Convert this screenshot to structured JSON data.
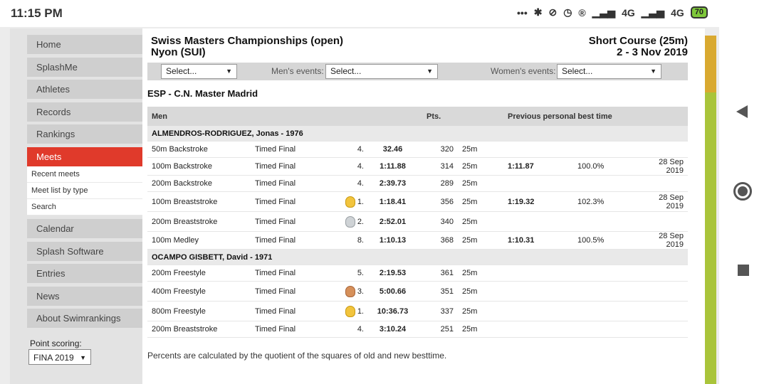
{
  "status_bar": {
    "time": "11:15 PM",
    "icons": [
      "more-dots-icon",
      "bluetooth-icon",
      "mute-icon",
      "alarm-icon",
      "registered-icon",
      "signal-icon",
      "signal-icon"
    ],
    "network_1": "4G",
    "network_2": "4G",
    "battery": "70"
  },
  "sidebar": {
    "items": [
      {
        "label": "Home"
      },
      {
        "label": "SplashMe"
      },
      {
        "label": "Athletes"
      },
      {
        "label": "Records"
      },
      {
        "label": "Rankings"
      },
      {
        "label": "Meets"
      },
      {
        "label": "Calendar"
      },
      {
        "label": "Splash Software"
      },
      {
        "label": "Entries"
      },
      {
        "label": "News"
      },
      {
        "label": "About Swimrankings"
      }
    ],
    "active": "Meets",
    "subitems": [
      "Recent meets",
      "Meet list by type",
      "Search"
    ],
    "point_scoring_label": "Point scoring:",
    "point_scoring_value": "FINA 2019"
  },
  "meet": {
    "name": "Swiss Masters Championships (open)",
    "location": "Nyon (SUI)",
    "course": "Short Course (25m)",
    "dates": "2 - 3 Nov 2019"
  },
  "filters": {
    "first_select": "Select...",
    "mens_label": "Men's events:",
    "mens_select": "Select...",
    "womens_label": "Women's events:",
    "womens_select": "Select..."
  },
  "club": "ESP - C.N. Master Madrid",
  "table": {
    "headers": {
      "gender": "Men",
      "pts": "Pts.",
      "previous": "Previous personal best time"
    },
    "athletes": [
      {
        "name": "ALMENDROS-RODRIGUEZ, Jonas - 1976",
        "results": [
          {
            "event": "50m Backstroke",
            "round": "Timed Final",
            "place": "4.",
            "medal": "",
            "time": "32.46",
            "pts": "320",
            "course": "25m",
            "prev_time": "",
            "pct": "",
            "date": ""
          },
          {
            "event": "100m Backstroke",
            "round": "Timed Final",
            "place": "4.",
            "medal": "",
            "time": "1:11.88",
            "pts": "314",
            "course": "25m",
            "prev_time": "1:11.87",
            "pct": "100.0%",
            "date": "28 Sep 2019"
          },
          {
            "event": "200m Backstroke",
            "round": "Timed Final",
            "place": "4.",
            "medal": "",
            "time": "2:39.73",
            "pts": "289",
            "course": "25m",
            "prev_time": "",
            "pct": "",
            "date": ""
          },
          {
            "event": "100m Breaststroke",
            "round": "Timed Final",
            "place": "1.",
            "medal": "gold",
            "time": "1:18.41",
            "pts": "356",
            "course": "25m",
            "prev_time": "1:19.32",
            "pct": "102.3%",
            "date": "28 Sep 2019"
          },
          {
            "event": "200m Breaststroke",
            "round": "Timed Final",
            "place": "2.",
            "medal": "silver",
            "time": "2:52.01",
            "pts": "340",
            "course": "25m",
            "prev_time": "",
            "pct": "",
            "date": ""
          },
          {
            "event": "100m Medley",
            "round": "Timed Final",
            "place": "8.",
            "medal": "",
            "time": "1:10.13",
            "pts": "368",
            "course": "25m",
            "prev_time": "1:10.31",
            "pct": "100.5%",
            "date": "28 Sep 2019"
          }
        ]
      },
      {
        "name": "OCAMPO GISBETT, David - 1971",
        "results": [
          {
            "event": "200m Freestyle",
            "round": "Timed Final",
            "place": "5.",
            "medal": "",
            "time": "2:19.53",
            "pts": "361",
            "course": "25m",
            "prev_time": "",
            "pct": "",
            "date": ""
          },
          {
            "event": "400m Freestyle",
            "round": "Timed Final",
            "place": "3.",
            "medal": "bronze",
            "time": "5:00.66",
            "pts": "351",
            "course": "25m",
            "prev_time": "",
            "pct": "",
            "date": ""
          },
          {
            "event": "800m Freestyle",
            "round": "Timed Final",
            "place": "1.",
            "medal": "gold",
            "time": "10:36.73",
            "pts": "337",
            "course": "25m",
            "prev_time": "",
            "pct": "",
            "date": ""
          },
          {
            "event": "200m Breaststroke",
            "round": "Timed Final",
            "place": "4.",
            "medal": "",
            "time": "3:10.24",
            "pts": "251",
            "course": "25m",
            "prev_time": "",
            "pct": "",
            "date": ""
          }
        ]
      }
    ]
  },
  "footnote": "Percents are calculated by the quotient of the squares of old and new besttime.",
  "colors": {
    "active_nav": "#e03a2b",
    "nav_bg": "#cfcfcf",
    "header_bg": "#d9d9d9"
  }
}
